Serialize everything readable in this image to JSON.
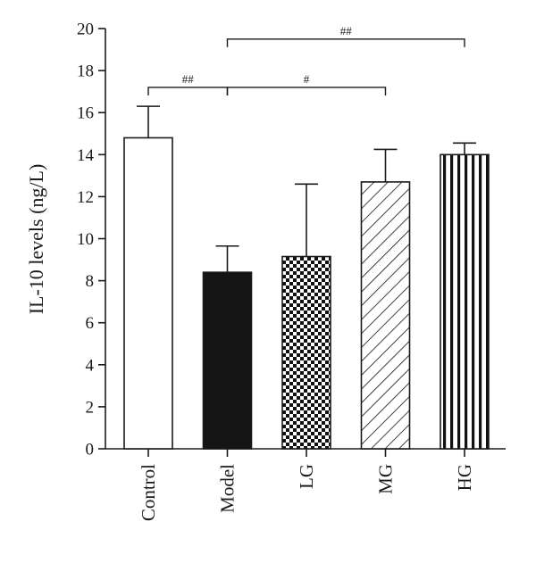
{
  "chart_data": {
    "type": "bar",
    "title": "",
    "xlabel": "",
    "ylabel": "IL-10 levels (ng/L)",
    "ylim": [
      0,
      20
    ],
    "yticks": [
      0,
      2,
      4,
      6,
      8,
      10,
      12,
      14,
      16,
      18,
      20
    ],
    "categories": [
      "Control",
      "Model",
      "LG",
      "MG",
      "HG"
    ],
    "values": [
      14.8,
      8.4,
      9.15,
      12.7,
      14.0
    ],
    "errors": [
      1.5,
      1.25,
      3.45,
      1.55,
      0.55
    ],
    "bar_fills": [
      "white",
      "black",
      "checkerboard",
      "diagonal-hatch",
      "vertical-stripes"
    ],
    "significance": [
      {
        "label": "##",
        "from": "Control",
        "to": "Model",
        "y": 17.2
      },
      {
        "label": "#",
        "from": "Model",
        "to": "MG",
        "y": 17.2
      },
      {
        "label": "##",
        "from": "Model",
        "to": "HG",
        "y": 19.5
      }
    ],
    "grid": false,
    "legend": "none"
  }
}
